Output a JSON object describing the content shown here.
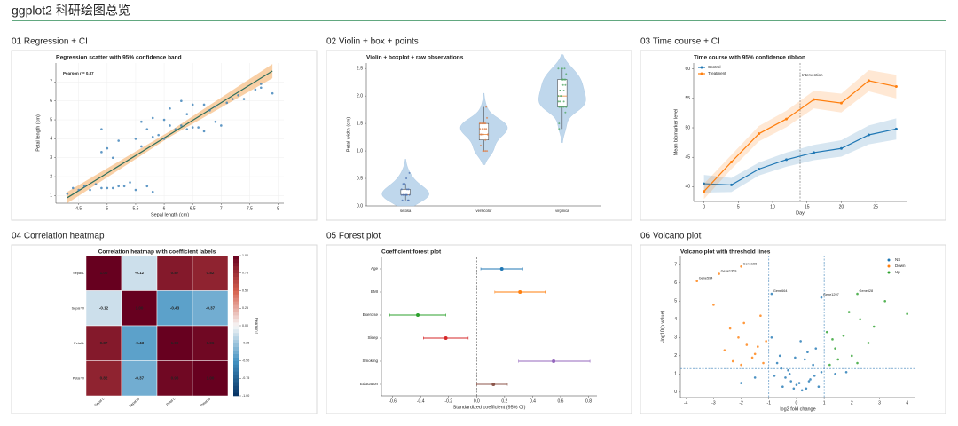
{
  "title": "ggplot2 科研绘图总览",
  "chart_data": [
    {
      "type": "scatter",
      "panel_label": "01 Regression + CI",
      "title": "Regression scatter with 95% confidence band",
      "annotation": "Pearson r = 0.87",
      "xlabel": "Sepal length (cm)",
      "ylabel": "Petal length (cm)",
      "xlim": [
        4.1,
        8.1
      ],
      "xticks": [
        4.5,
        5,
        5.5,
        6,
        6.5,
        7,
        7.5,
        8
      ],
      "ylim": [
        0.6,
        8.0
      ],
      "yticks": [
        1,
        2,
        3,
        4,
        5,
        6,
        7
      ],
      "grid": true,
      "color": "#3a7fb8",
      "x": [
        5.1,
        4.9,
        4.7,
        4.6,
        5.0,
        5.4,
        4.4,
        4.8,
        4.3,
        5.8,
        5.7,
        5.2,
        5.5,
        4.5,
        5.3,
        7.0,
        6.4,
        6.9,
        5.5,
        6.5,
        5.7,
        6.3,
        4.9,
        6.6,
        5.2,
        5.0,
        5.9,
        6.0,
        6.1,
        5.6,
        6.7,
        5.8,
        6.2,
        5.1,
        6.3,
        5.8,
        7.1,
        6.5,
        7.6,
        4.9,
        7.3,
        6.7,
        7.2,
        6.4,
        6.8,
        7.7,
        7.7,
        6.0,
        6.9,
        5.6,
        7.9,
        6.1,
        7.4
      ],
      "values": [
        1.4,
        1.4,
        1.3,
        1.5,
        1.4,
        1.7,
        1.4,
        1.6,
        1.1,
        1.2,
        1.5,
        1.5,
        1.3,
        1.3,
        1.5,
        4.7,
        4.5,
        4.9,
        4.0,
        4.6,
        4.5,
        4.7,
        3.3,
        4.6,
        3.9,
        3.5,
        4.2,
        4.0,
        4.7,
        3.6,
        4.4,
        4.1,
        4.5,
        3.0,
        6.0,
        5.1,
        5.9,
        5.8,
        6.6,
        4.5,
        6.3,
        5.8,
        6.1,
        5.3,
        5.5,
        6.7,
        6.9,
        5.0,
        5.7,
        4.9,
        6.4,
        5.6,
        6.1
      ],
      "fit": {
        "x": [
          4.3,
          6.1,
          7.9
        ],
        "y": [
          0.89,
          4.23,
          7.58
        ],
        "color": "#2f6f5e"
      },
      "band": {
        "x": [
          4.3,
          6.1,
          7.9
        ],
        "lower": [
          0.6,
          4.1,
          7.2
        ],
        "upper": [
          1.2,
          4.4,
          7.95
        ],
        "color": "#f5b06a"
      }
    },
    {
      "type": "violin",
      "panel_label": "02 Violin + box + points",
      "title": "Violin + boxplot + raw observations",
      "ylabel": "Petal width (cm)",
      "categories": [
        "setosa",
        "versicolor",
        "virginica"
      ],
      "ylim": [
        0,
        2.6
      ],
      "yticks": [
        {
          "value": 0,
          "label": "0.0"
        },
        0.5,
        {
          "value": 1,
          "label": "1.0"
        },
        1.5,
        {
          "value": 2,
          "label": "2.0"
        },
        2.5
      ],
      "violin_color": "#b9d3ea",
      "median_color": "#e8893a",
      "colors": [
        "#4c72b0",
        "#dd8452",
        "#55a868"
      ],
      "values": [
        [
          0.2,
          0.2,
          0.2,
          0.2,
          0.2,
          0.4,
          0.3,
          0.2,
          0.1,
          0.1,
          0.4,
          0.3,
          0.3,
          0.2,
          0.6,
          0.5,
          0.2,
          0.1
        ],
        [
          1.4,
          1.5,
          1.5,
          1.3,
          1.5,
          1.3,
          1.6,
          1.0,
          1.3,
          1.4,
          1.0,
          1.5,
          1.0,
          1.4,
          1.3,
          1.4,
          1.5,
          1.0,
          1.5,
          1.1,
          1.8,
          1.3,
          1.5,
          1.2
        ],
        [
          2.5,
          1.9,
          2.1,
          1.8,
          2.2,
          2.1,
          1.7,
          1.8,
          1.8,
          2.5,
          2.0,
          1.9,
          2.1,
          2.0,
          2.4,
          2.3,
          1.8,
          2.2,
          2.3,
          1.5,
          2.3,
          2.0,
          2.0,
          1.8,
          2.1,
          1.8,
          2.3,
          1.9,
          2.3,
          2.5,
          1.4
        ]
      ],
      "box": [
        {
          "whislo": 0.1,
          "q1": 0.2,
          "med": 0.2,
          "q3": 0.3,
          "whishi": 0.4
        },
        {
          "whislo": 1.0,
          "q1": 1.2,
          "med": 1.3,
          "q3": 1.5,
          "whishi": 1.8
        },
        {
          "whislo": 1.4,
          "q1": 1.8,
          "med": 2.0,
          "q3": 2.3,
          "whishi": 2.5
        }
      ]
    },
    {
      "type": "line",
      "panel_label": "03 Time course + CI",
      "title": "Time course with 95% confidence ribbon",
      "xlabel": "Day",
      "ylabel": "Mean biomarker level",
      "x": [
        0,
        4,
        8,
        12,
        16,
        20,
        24,
        28
      ],
      "xlim": [
        -1.5,
        29.5
      ],
      "xticks": [
        0,
        5,
        10,
        15,
        20,
        25
      ],
      "ylim": [
        37.5,
        61
      ],
      "yticks": [
        40,
        45,
        50,
        55,
        60
      ],
      "legend": "upper left",
      "event_x": 14,
      "event_label": "Intervention",
      "series": [
        {
          "name": "Control",
          "color": "#1f77b4",
          "values": [
            40.5,
            40.3,
            43.0,
            44.6,
            45.8,
            46.5,
            48.8,
            49.8
          ],
          "lower": [
            39.0,
            39.1,
            41.9,
            43.4,
            44.5,
            45.1,
            47.2,
            48.0
          ],
          "upper": [
            42.0,
            41.5,
            44.1,
            45.8,
            47.1,
            47.9,
            50.4,
            51.6
          ]
        },
        {
          "name": "Treatment",
          "color": "#ff7f0e",
          "values": [
            39.2,
            44.2,
            49.0,
            51.5,
            54.8,
            54.2,
            58.0,
            57.0
          ],
          "lower": [
            37.9,
            43.0,
            47.7,
            50.1,
            53.3,
            52.6,
            56.2,
            55.0
          ],
          "upper": [
            40.5,
            45.4,
            50.3,
            52.9,
            56.3,
            55.8,
            59.8,
            59.0
          ]
        }
      ]
    },
    {
      "type": "heatmap",
      "panel_label": "04 Correlation heatmap",
      "title": "Correlation heatmap with coefficient labels",
      "categories": [
        "Sepal L",
        "Sepal W",
        "Petal L",
        "Petal W"
      ],
      "values": [
        [
          1,
          -0.12,
          0.87,
          0.82
        ],
        [
          -0.12,
          1,
          -0.43,
          -0.37
        ],
        [
          0.87,
          -0.43,
          1,
          0.96
        ],
        [
          0.82,
          -0.37,
          0.96,
          1
        ]
      ],
      "value_labels": [
        [
          "1.00",
          "-0.12",
          "0.87",
          "0.82"
        ],
        [
          "-0.12",
          "1.00",
          "-0.43",
          "-0.37"
        ],
        [
          "0.87",
          "-0.43",
          "1.00",
          "0.96"
        ],
        [
          "0.82",
          "-0.37",
          "0.96",
          "1.00"
        ]
      ],
      "colormap": "RdBu_r",
      "clim": [
        -1,
        1
      ],
      "colorbar_label": "Pearson r",
      "cticks": [
        {
          "value": -1,
          "label": "-1.00"
        },
        -0.75,
        {
          "value": -0.5,
          "label": "-0.50"
        },
        -0.25,
        {
          "value": 0,
          "label": "0.00"
        },
        0.25,
        {
          "value": 0.5,
          "label": "0.50"
        },
        0.75,
        {
          "value": 1,
          "label": "1.00"
        }
      ]
    },
    {
      "type": "forest",
      "panel_label": "05 Forest plot",
      "title": "Coefficient forest plot",
      "xlabel": "Standardized coefficient (95% CI)",
      "categories": [
        "Age",
        "BMI",
        "Exercise",
        "Sleep",
        "Smoking",
        "Education"
      ],
      "values": [
        0.18,
        0.31,
        -0.42,
        -0.22,
        0.55,
        0.12
      ],
      "lower": [
        0.03,
        0.13,
        -0.62,
        -0.38,
        0.3,
        0.0
      ],
      "upper": [
        0.33,
        0.49,
        -0.22,
        -0.06,
        0.81,
        0.22
      ],
      "colors": [
        "#1f77b4",
        "#ff7f0e",
        "#2ca02c",
        "#d62728",
        "#9467bd",
        "#8c564b"
      ],
      "ref_line": 0,
      "xlim": [
        -0.68,
        0.86
      ],
      "xticks": [
        -0.6,
        -0.4,
        -0.2,
        {
          "value": 0,
          "label": "0.0"
        },
        0.2,
        0.4,
        0.6,
        0.8
      ]
    },
    {
      "type": "scatter",
      "panel_label": "06 Volcano plot",
      "title": "Volcano plot with threshold lines",
      "xlabel": "log2 fold change",
      "ylabel": "-log10(p value)",
      "xlim": [
        -4.2,
        4.3
      ],
      "xticks": [
        -4,
        -3,
        -2,
        -1,
        0,
        1,
        2,
        3,
        4
      ],
      "ylim": [
        -0.3,
        7.5
      ],
      "yticks": [
        0,
        1,
        2,
        3,
        4,
        5,
        6,
        7
      ],
      "legend": "upper right",
      "fc_threshold": [
        -1,
        1
      ],
      "p_threshold": 1.3,
      "series": [
        {
          "name": "NS",
          "color": "#1f77b4",
          "x": [
            -0.8,
            -0.5,
            -0.3,
            -0.1,
            0.1,
            0.3,
            0.5,
            0.7,
            0.9,
            -0.6,
            -0.2,
            0.2,
            0.6,
            -0.9,
            0.0,
            0.4,
            -0.4,
            0.8,
            -0.7,
            0.15,
            -0.25,
            0.65,
            -1.5,
            1.4,
            -2.0,
            1.8,
            0.35,
            -0.55,
            -0.05,
            0.45,
            -0.9,
            0.9
          ],
          "values": [
            0.9,
            0.3,
            1.2,
            0.2,
            0.5,
            1.8,
            0.7,
            2.4,
            1.1,
            2.0,
            0.6,
            0.1,
            1.5,
            3.0,
            0.4,
            2.2,
            0.8,
            0.3,
            1.6,
            2.8,
            1.0,
            0.9,
            0.8,
            1.0,
            0.5,
            1.1,
            0.2,
            1.3,
            1.9,
            0.6,
            5.4,
            5.2
          ]
        },
        {
          "name": "Down",
          "color": "#ff7f0e",
          "x": [
            -1.2,
            -1.5,
            -1.8,
            -2.1,
            -2.4,
            -1.3,
            -1.6,
            -2.0,
            -2.6,
            -3.0,
            -1.1,
            -1.9,
            -2.3,
            -1.4,
            -3.6,
            -2.8,
            -2.0
          ],
          "values": [
            1.6,
            2.1,
            2.6,
            3.0,
            3.5,
            4.2,
            1.9,
            1.5,
            2.3,
            4.8,
            2.8,
            3.8,
            1.7,
            2.5,
            6.1,
            6.5,
            6.9
          ]
        },
        {
          "name": "Up",
          "color": "#2ca02c",
          "x": [
            1.2,
            1.4,
            1.7,
            2.0,
            2.3,
            2.6,
            1.1,
            1.5,
            1.9,
            2.8,
            3.2,
            1.3,
            2.2,
            4.0,
            2.2
          ],
          "values": [
            1.5,
            2.4,
            3.1,
            2.0,
            4.0,
            2.7,
            3.3,
            1.8,
            4.4,
            3.6,
            5.0,
            2.9,
            1.6,
            4.3,
            5.4
          ]
        }
      ],
      "annotations": [
        {
          "text": "Gene594",
          "x": -3.6,
          "y": 6.1
        },
        {
          "text": "Gene1359",
          "x": -2.8,
          "y": 6.5
        },
        {
          "text": "Gene166",
          "x": -2.0,
          "y": 6.9
        },
        {
          "text": "Gene664",
          "x": -0.9,
          "y": 5.4
        },
        {
          "text": "Gene1297",
          "x": 0.9,
          "y": 5.2
        },
        {
          "text": "Gene328",
          "x": 2.2,
          "y": 5.4
        }
      ]
    }
  ]
}
